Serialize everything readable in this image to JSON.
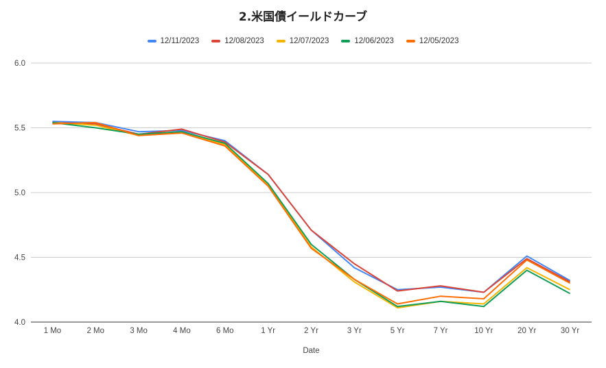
{
  "title": "2.米国債イールドカーブ",
  "chart_data": {
    "type": "line",
    "title": "2.米国債イールドカーブ",
    "xlabel": "Date",
    "ylabel": "",
    "ylim": [
      4.0,
      6.0
    ],
    "yticks": [
      "4.0",
      "4.5",
      "5.0",
      "5.5",
      "6.0"
    ],
    "grid": true,
    "legend_position": "top",
    "categories": [
      "1 Mo",
      "2 Mo",
      "3 Mo",
      "4 Mo",
      "6 Mo",
      "1 Yr",
      "2 Yr",
      "3 Yr",
      "5 Yr",
      "7 Yr",
      "10 Yr",
      "20 Yr",
      "30 Yr"
    ],
    "series": [
      {
        "name": "12/11/2023",
        "color": "#4285f4",
        "values": [
          5.55,
          5.54,
          5.47,
          5.48,
          5.4,
          5.14,
          4.71,
          4.42,
          4.25,
          4.27,
          4.23,
          4.51,
          4.32
        ]
      },
      {
        "name": "12/08/2023",
        "color": "#db4437",
        "values": [
          5.54,
          5.53,
          5.45,
          5.49,
          5.39,
          5.14,
          4.71,
          4.45,
          4.24,
          4.28,
          4.23,
          4.49,
          4.31
        ]
      },
      {
        "name": "12/07/2023",
        "color": "#f4b400",
        "values": [
          5.54,
          5.52,
          5.44,
          5.47,
          5.37,
          5.06,
          4.58,
          4.31,
          4.11,
          4.16,
          4.14,
          4.42,
          4.25
        ]
      },
      {
        "name": "12/06/2023",
        "color": "#0f9d58",
        "values": [
          5.54,
          5.5,
          5.45,
          5.47,
          5.38,
          5.07,
          4.6,
          4.33,
          4.12,
          4.16,
          4.12,
          4.4,
          4.22
        ]
      },
      {
        "name": "12/05/2023",
        "color": "#ff6d01",
        "values": [
          5.53,
          5.54,
          5.44,
          5.46,
          5.36,
          5.05,
          4.57,
          4.33,
          4.14,
          4.2,
          4.18,
          4.48,
          4.3
        ]
      }
    ]
  }
}
